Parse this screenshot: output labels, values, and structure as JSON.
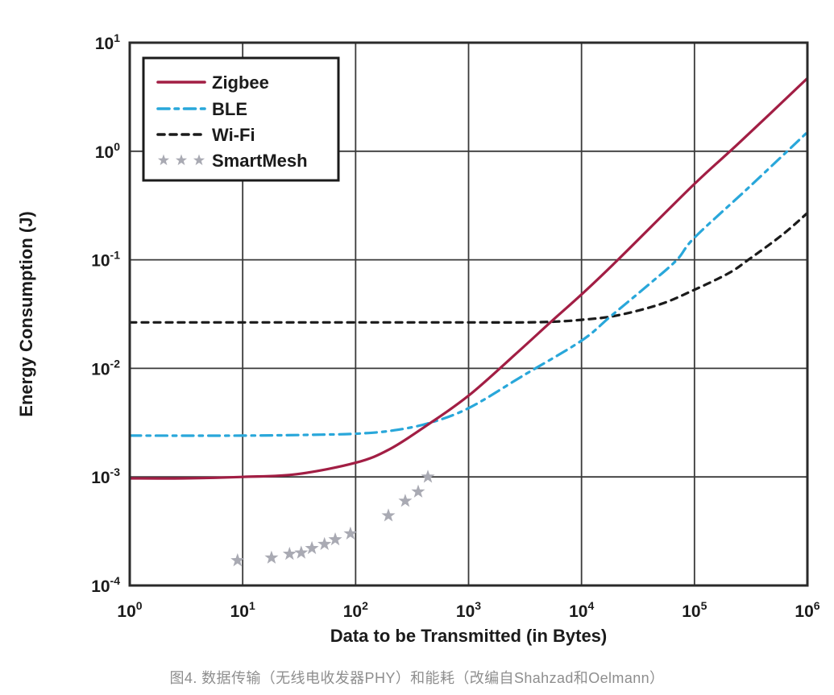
{
  "caption": {
    "text": "图4. 数据传输（无线电收发器PHY）和能耗（改编自Shahzad和Oelmann）",
    "color": "#8e8e8e"
  },
  "chart_data": {
    "type": "line",
    "title": "",
    "xlabel": "Data to be Transmitted (in Bytes)",
    "ylabel": "Energy Consumption (J)",
    "x_scale": "log",
    "y_scale": "log",
    "xlim": [
      1,
      1000000
    ],
    "ylim": [
      0.0001,
      10
    ],
    "x_tick_base": "10",
    "x_tick_exponents": [
      0,
      1,
      2,
      3,
      4,
      5,
      6
    ],
    "y_tick_exponents": [
      1,
      0,
      -1,
      -2,
      -3,
      -4
    ],
    "grid": true,
    "grid_color": "#3a3a3a",
    "axis_color": "#2a2a2a",
    "text_color": "#1b1b1b",
    "background": "#ffffff",
    "legend_position": "top-left",
    "series": [
      {
        "name": "Wi-Fi",
        "type": "line",
        "line_style": "dashed",
        "color": "#1b1b1b",
        "points": [
          [
            1,
            0.0265
          ],
          [
            100,
            0.0265
          ],
          [
            1000,
            0.0265
          ],
          [
            3000,
            0.0265
          ],
          [
            6000,
            0.027
          ],
          [
            10000,
            0.028
          ],
          [
            20000,
            0.0305
          ],
          [
            50000,
            0.039
          ],
          [
            100000,
            0.053
          ],
          [
            200000,
            0.075
          ],
          [
            300000,
            0.1
          ],
          [
            600000,
            0.17
          ],
          [
            1000000,
            0.27
          ]
        ]
      },
      {
        "name": "BLE",
        "type": "line",
        "line_style": "dash-dot",
        "color": "#29a7da",
        "points": [
          [
            1,
            0.0024
          ],
          [
            10,
            0.0024
          ],
          [
            50,
            0.00245
          ],
          [
            100,
            0.0025
          ],
          [
            200,
            0.00265
          ],
          [
            430,
            0.0031
          ],
          [
            1000,
            0.0043
          ],
          [
            3000,
            0.0085
          ],
          [
            10000,
            0.018
          ],
          [
            18000,
            0.03
          ],
          [
            40000,
            0.06
          ],
          [
            70000,
            0.1
          ],
          [
            100000,
            0.16
          ],
          [
            300000,
            0.46
          ],
          [
            1000000,
            1.5
          ]
        ]
      },
      {
        "name": "Zigbee",
        "type": "line",
        "line_style": "solid",
        "color": "#a21e44",
        "points": [
          [
            1,
            0.00097
          ],
          [
            3,
            0.00097
          ],
          [
            10,
            0.001
          ],
          [
            30,
            0.00106
          ],
          [
            100,
            0.00135
          ],
          [
            200,
            0.0018
          ],
          [
            430,
            0.003
          ],
          [
            1000,
            0.0056
          ],
          [
            2600,
            0.0135
          ],
          [
            5500,
            0.0275
          ],
          [
            10000,
            0.048
          ],
          [
            21000,
            0.1
          ],
          [
            100000,
            0.5
          ],
          [
            250000,
            1.2
          ],
          [
            1000000,
            4.7
          ]
        ]
      },
      {
        "name": "SmartMesh",
        "type": "scatter",
        "marker": "star",
        "color": "#a9aab3",
        "points": [
          [
            9,
            0.00017
          ],
          [
            18,
            0.00018
          ],
          [
            26,
            0.000195
          ],
          [
            33,
            0.0002
          ],
          [
            41,
            0.00022
          ],
          [
            53,
            0.00024
          ],
          [
            66,
            0.000265
          ],
          [
            90,
            0.0003
          ],
          [
            195,
            0.00044
          ],
          [
            275,
            0.0006
          ],
          [
            358,
            0.00073
          ],
          [
            436,
            0.001
          ]
        ]
      }
    ],
    "legend_order": [
      "Zigbee",
      "BLE",
      "Wi-Fi",
      "SmartMesh"
    ]
  }
}
